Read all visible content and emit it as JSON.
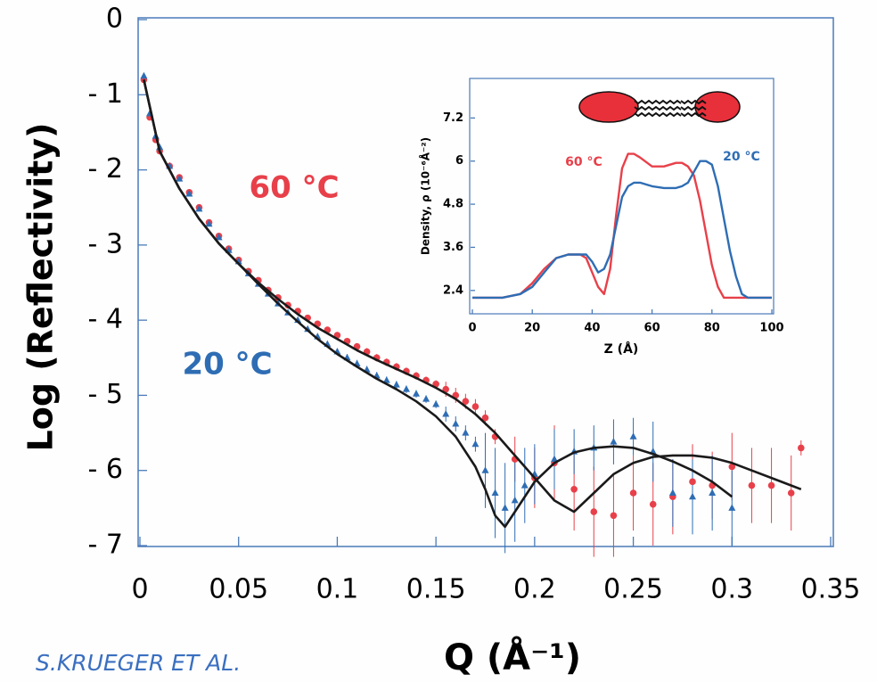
{
  "credit": "S.KRUEGER  ET AL.",
  "chart_data": [
    {
      "type": "scatter",
      "xlabel": "Q (Å⁻¹)",
      "ylabel": "Log  (Reflectivity)",
      "xlim": [
        0,
        0.35
      ],
      "ylim": [
        -7,
        0
      ],
      "xticks": [
        0,
        0.05,
        0.1,
        0.15,
        0.2,
        0.25,
        0.3,
        0.35
      ],
      "yticks": [
        0,
        {
          "value": -1,
          "label": "- 1"
        },
        {
          "value": -2,
          "label": "- 2"
        },
        {
          "value": -3,
          "label": "- 3"
        },
        {
          "value": -4,
          "label": "- 4"
        },
        {
          "value": -5,
          "label": "- 5"
        },
        {
          "value": -6,
          "label": "- 6"
        },
        {
          "value": -7,
          "label": "- 7"
        }
      ],
      "fit_color": "#1a1a1a",
      "series": [
        {
          "name": "60 °C",
          "color": "#e8404a",
          "marker": "circle",
          "x": [
            0.002,
            0.005,
            0.008,
            0.01,
            0.015,
            0.02,
            0.025,
            0.03,
            0.035,
            0.04,
            0.045,
            0.05,
            0.055,
            0.06,
            0.065,
            0.07,
            0.075,
            0.08,
            0.085,
            0.09,
            0.095,
            0.1,
            0.105,
            0.11,
            0.115,
            0.12,
            0.125,
            0.13,
            0.135,
            0.14,
            0.145,
            0.15,
            0.155,
            0.16,
            0.165,
            0.17,
            0.175,
            0.18,
            0.19,
            0.2,
            0.21,
            0.22,
            0.23,
            0.24,
            0.25,
            0.26,
            0.27,
            0.28,
            0.29,
            0.3,
            0.31,
            0.32,
            0.33,
            0.335
          ],
          "values": [
            -0.8,
            -1.3,
            -1.6,
            -1.75,
            -1.95,
            -2.1,
            -2.3,
            -2.5,
            -2.7,
            -2.88,
            -3.05,
            -3.2,
            -3.35,
            -3.47,
            -3.6,
            -3.7,
            -3.8,
            -3.88,
            -3.97,
            -4.05,
            -4.13,
            -4.2,
            -4.28,
            -4.35,
            -4.42,
            -4.5,
            -4.56,
            -4.62,
            -4.68,
            -4.74,
            -4.8,
            -4.85,
            -4.92,
            -5.0,
            -5.08,
            -5.15,
            -5.3,
            -5.55,
            -5.85,
            -6.1,
            -5.9,
            -6.25,
            -6.55,
            -6.6,
            -6.3,
            -6.45,
            -6.35,
            -6.15,
            -6.2,
            -5.95,
            -6.2,
            -6.2,
            -6.3,
            -5.7
          ],
          "errors": [
            0.03,
            0.03,
            0.03,
            0.03,
            0.03,
            0.03,
            0.03,
            0.03,
            0.03,
            0.03,
            0.03,
            0.03,
            0.03,
            0.03,
            0.03,
            0.03,
            0.03,
            0.03,
            0.03,
            0.03,
            0.03,
            0.03,
            0.03,
            0.03,
            0.05,
            0.05,
            0.05,
            0.05,
            0.05,
            0.05,
            0.05,
            0.05,
            0.1,
            0.1,
            0.1,
            0.1,
            0.1,
            0.1,
            0.3,
            0.4,
            0.5,
            0.55,
            0.6,
            0.55,
            0.5,
            0.55,
            0.5,
            0.5,
            0.45,
            0.45,
            0.5,
            0.5,
            0.5,
            0.1
          ],
          "fit": {
            "x": [
              0.002,
              0.01,
              0.02,
              0.03,
              0.04,
              0.05,
              0.06,
              0.07,
              0.08,
              0.09,
              0.1,
              0.11,
              0.12,
              0.13,
              0.14,
              0.15,
              0.16,
              0.17,
              0.18,
              0.19,
              0.2,
              0.21,
              0.22,
              0.23,
              0.24,
              0.25,
              0.26,
              0.27,
              0.28,
              0.29,
              0.3,
              0.31,
              0.32,
              0.335
            ],
            "values": [
              -0.8,
              -1.75,
              -2.25,
              -2.65,
              -2.98,
              -3.25,
              -3.5,
              -3.72,
              -3.92,
              -4.1,
              -4.25,
              -4.4,
              -4.53,
              -4.65,
              -4.77,
              -4.9,
              -5.05,
              -5.25,
              -5.5,
              -5.8,
              -6.1,
              -6.4,
              -6.55,
              -6.3,
              -6.05,
              -5.9,
              -5.82,
              -5.8,
              -5.8,
              -5.83,
              -5.9,
              -6.0,
              -6.1,
              -6.25
            ]
          }
        },
        {
          "name": "20 °C",
          "color": "#2e6db4",
          "marker": "triangle",
          "x": [
            0.002,
            0.005,
            0.008,
            0.01,
            0.015,
            0.02,
            0.025,
            0.03,
            0.035,
            0.04,
            0.045,
            0.05,
            0.055,
            0.06,
            0.065,
            0.07,
            0.075,
            0.08,
            0.085,
            0.09,
            0.095,
            0.1,
            0.105,
            0.11,
            0.115,
            0.12,
            0.125,
            0.13,
            0.135,
            0.14,
            0.145,
            0.15,
            0.155,
            0.16,
            0.165,
            0.17,
            0.175,
            0.18,
            0.185,
            0.19,
            0.195,
            0.2,
            0.21,
            0.22,
            0.23,
            0.24,
            0.25,
            0.26,
            0.27,
            0.28,
            0.29,
            0.3
          ],
          "values": [
            -0.75,
            -1.25,
            -1.55,
            -1.7,
            -1.95,
            -2.12,
            -2.32,
            -2.52,
            -2.72,
            -2.9,
            -3.07,
            -3.22,
            -3.38,
            -3.52,
            -3.65,
            -3.78,
            -3.9,
            -4.0,
            -4.12,
            -4.22,
            -4.32,
            -4.42,
            -4.5,
            -4.58,
            -4.66,
            -4.74,
            -4.8,
            -4.86,
            -4.92,
            -4.98,
            -5.05,
            -5.12,
            -5.25,
            -5.38,
            -5.5,
            -5.65,
            -6.0,
            -6.3,
            -6.5,
            -6.4,
            -6.2,
            -6.05,
            -5.85,
            -5.75,
            -5.7,
            -5.62,
            -5.55,
            -5.75,
            -6.3,
            -6.35,
            -6.3,
            -6.5
          ],
          "errors": [
            0.03,
            0.03,
            0.03,
            0.03,
            0.03,
            0.03,
            0.03,
            0.03,
            0.03,
            0.03,
            0.03,
            0.03,
            0.03,
            0.03,
            0.03,
            0.03,
            0.03,
            0.03,
            0.03,
            0.03,
            0.03,
            0.03,
            0.05,
            0.05,
            0.05,
            0.05,
            0.05,
            0.05,
            0.05,
            0.05,
            0.05,
            0.05,
            0.1,
            0.1,
            0.1,
            0.1,
            0.5,
            0.6,
            0.6,
            0.55,
            0.5,
            0.4,
            0.4,
            0.3,
            0.3,
            0.3,
            0.25,
            0.4,
            0.45,
            0.5,
            0.5,
            0.5
          ],
          "fit": {
            "x": [
              0.002,
              0.01,
              0.02,
              0.03,
              0.04,
              0.05,
              0.06,
              0.07,
              0.08,
              0.09,
              0.1,
              0.11,
              0.12,
              0.13,
              0.14,
              0.15,
              0.16,
              0.17,
              0.175,
              0.18,
              0.185,
              0.19,
              0.2,
              0.21,
              0.22,
              0.23,
              0.24,
              0.25,
              0.26,
              0.27,
              0.28,
              0.29,
              0.3
            ],
            "values": [
              -0.8,
              -1.75,
              -2.25,
              -2.65,
              -2.98,
              -3.25,
              -3.52,
              -3.78,
              -4.02,
              -4.25,
              -4.45,
              -4.62,
              -4.78,
              -4.92,
              -5.08,
              -5.28,
              -5.55,
              -5.95,
              -6.25,
              -6.6,
              -6.75,
              -6.55,
              -6.15,
              -5.9,
              -5.76,
              -5.7,
              -5.68,
              -5.7,
              -5.78,
              -5.88,
              -6.0,
              -6.15,
              -6.35
            ]
          }
        }
      ]
    },
    {
      "type": "line",
      "xlabel": "Z (Å)",
      "ylabel": "Density, ρ (10⁻⁶Å⁻²)",
      "xlim": [
        0,
        100
      ],
      "ylim": [
        1.75,
        8.3
      ],
      "xticks": [
        0,
        20,
        40,
        60,
        80,
        100
      ],
      "yticks": [
        2.4,
        3.6,
        4.8,
        6,
        7.2
      ],
      "x": [
        0,
        10,
        16,
        20,
        24,
        28,
        32,
        36,
        38,
        40,
        42,
        44,
        46,
        48,
        50,
        52,
        54,
        56,
        60,
        64,
        68,
        70,
        72,
        74,
        76,
        78,
        80,
        82,
        84,
        86,
        88,
        90,
        92,
        100
      ],
      "series": [
        {
          "name": "60 °C",
          "color": "#e8404a",
          "values": [
            2.2,
            2.2,
            2.3,
            2.6,
            3.0,
            3.3,
            3.4,
            3.4,
            3.3,
            2.9,
            2.5,
            2.3,
            3.0,
            4.5,
            5.8,
            6.2,
            6.2,
            6.1,
            5.85,
            5.85,
            5.95,
            5.95,
            5.85,
            5.6,
            4.9,
            4.0,
            3.1,
            2.5,
            2.2,
            2.2,
            2.2,
            2.2,
            2.2,
            2.2
          ]
        },
        {
          "name": "20 °C",
          "color": "#2e6db4",
          "values": [
            2.2,
            2.2,
            2.3,
            2.5,
            2.9,
            3.3,
            3.4,
            3.4,
            3.4,
            3.2,
            2.9,
            3.0,
            3.4,
            4.2,
            5.0,
            5.3,
            5.4,
            5.4,
            5.3,
            5.25,
            5.25,
            5.3,
            5.4,
            5.7,
            6.0,
            6.0,
            5.9,
            5.3,
            4.4,
            3.5,
            2.8,
            2.3,
            2.2,
            2.2
          ]
        }
      ]
    }
  ]
}
